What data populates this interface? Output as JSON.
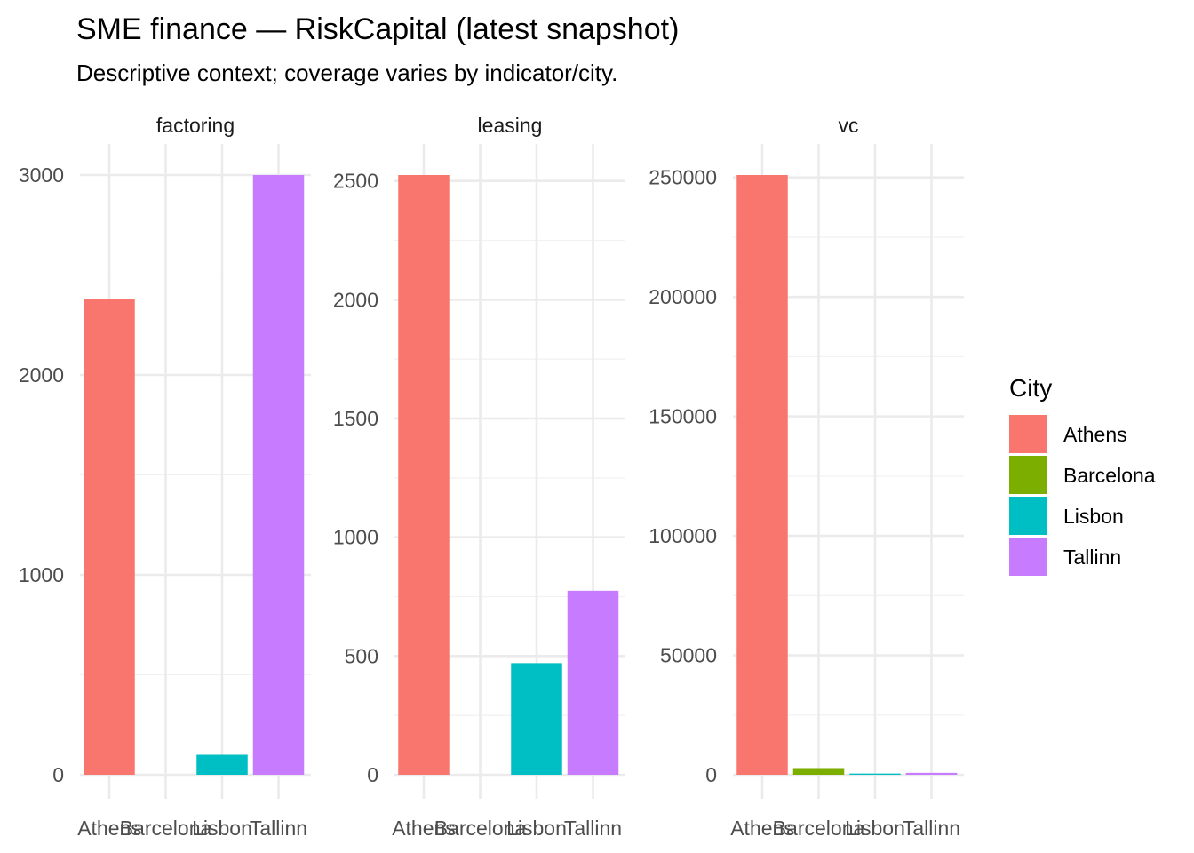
{
  "title": "SME finance — RiskCapital (latest snapshot)",
  "subtitle": "Descriptive context; coverage varies by indicator/city.",
  "legend": {
    "title": "City",
    "position": "right",
    "items": [
      {
        "label": "Athens",
        "color": "#F8766D"
      },
      {
        "label": "Barcelona",
        "color": "#7CAE00"
      },
      {
        "label": "Lisbon",
        "color": "#00BFC4"
      },
      {
        "label": "Tallinn",
        "color": "#C77CFF"
      }
    ]
  },
  "chart_data": {
    "type": "bar",
    "facet_layout": "1 row x 3 columns, free y scales",
    "grid": true,
    "categories": [
      "Athens",
      "Barcelona",
      "Lisbon",
      "Tallinn"
    ],
    "panels": [
      {
        "strip_label": "factoring",
        "values": [
          2380,
          null,
          100,
          3000
        ],
        "ylim": [
          0,
          3000
        ],
        "yticks": [
          "0",
          "1000",
          "2000",
          "3000"
        ],
        "ytick_values": [
          0,
          1000,
          2000,
          3000
        ]
      },
      {
        "strip_label": "leasing",
        "values": [
          2525,
          null,
          470,
          775
        ],
        "ylim": [
          0,
          2525
        ],
        "yticks": [
          "0",
          "500",
          "1000",
          "1500",
          "2000",
          "2500"
        ],
        "ytick_values": [
          0,
          500,
          1000,
          1500,
          2000,
          2500
        ]
      },
      {
        "strip_label": "vc",
        "values": [
          251000,
          2800,
          500,
          800
        ],
        "ylim": [
          0,
          251000
        ],
        "yticks": [
          "0",
          "50000",
          "100000",
          "150000",
          "200000",
          "250000"
        ],
        "ytick_values": [
          0,
          50000,
          100000,
          150000,
          200000,
          250000
        ]
      }
    ]
  }
}
